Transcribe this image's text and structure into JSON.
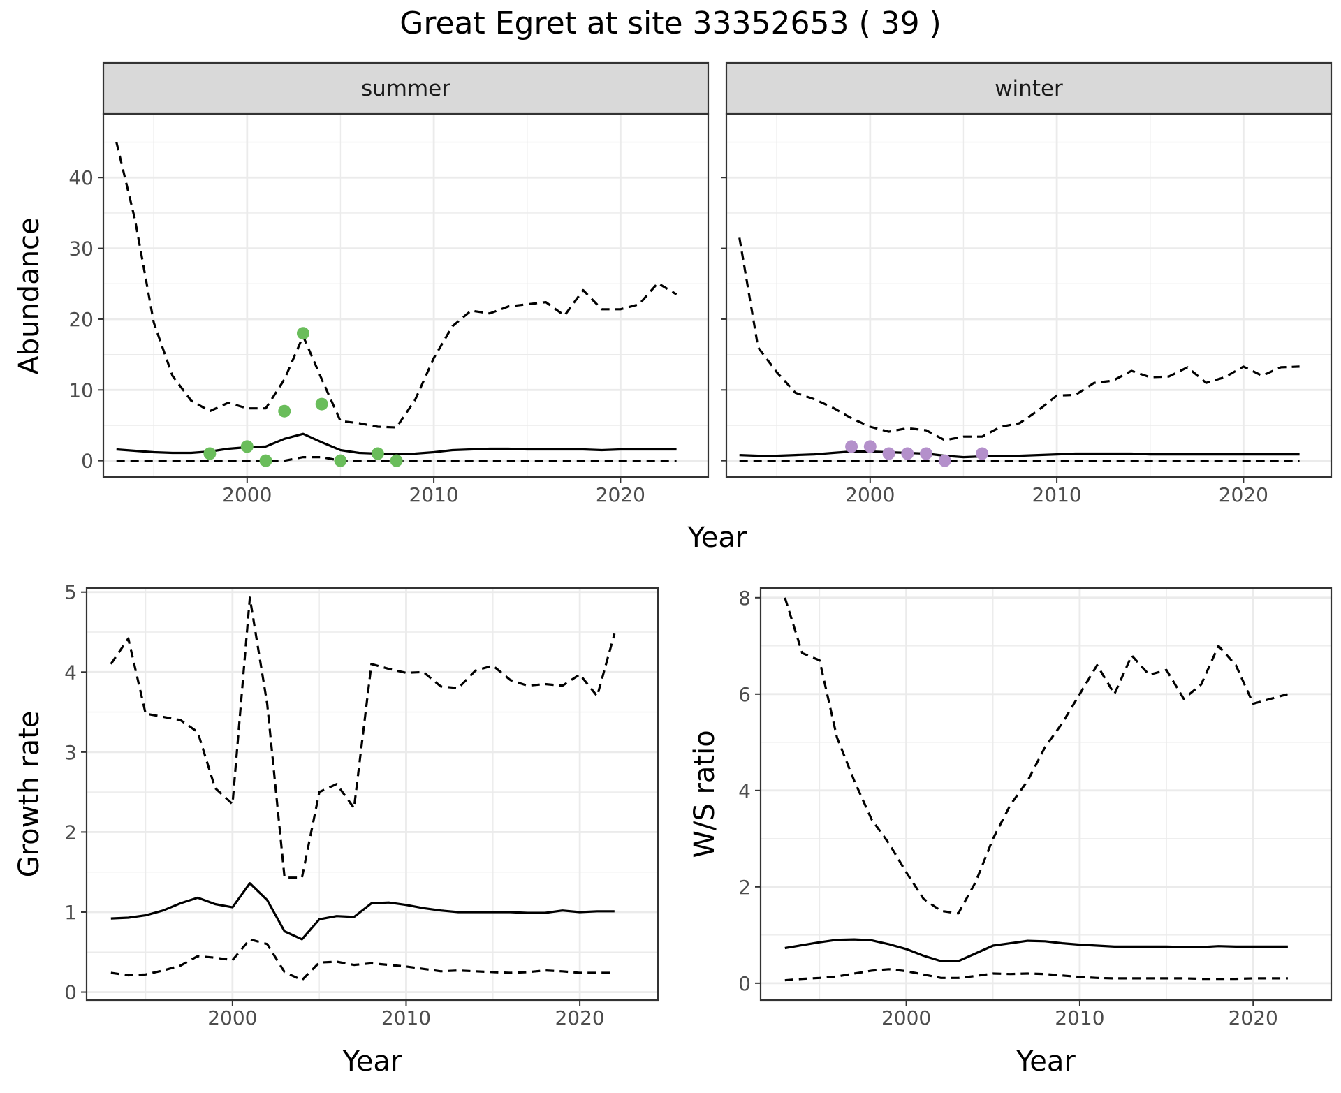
{
  "title": "Great Egret at site 33352653 ( 39 )",
  "colors": {
    "summer_points": "#6ABD5B",
    "winter_points": "#B490CB",
    "strip_fill": "#D9D9D9"
  },
  "chart_data": [
    {
      "type": "line",
      "panel": "abundance",
      "facets": [
        "summer",
        "winter"
      ],
      "xlabel": "Year",
      "ylabel": "Abundance",
      "xlim": [
        1992.3,
        2024.7
      ],
      "ylim": [
        -2.3,
        49
      ],
      "xticks": [
        2000,
        2010,
        2020
      ],
      "yticks": [
        0,
        10,
        20,
        30,
        40
      ],
      "grid": true,
      "summer": {
        "x": [
          1993,
          1994,
          1995,
          1996,
          1997,
          1998,
          1999,
          2000,
          2001,
          2002,
          2003,
          2004,
          2005,
          2006,
          2007,
          2008,
          2009,
          2010,
          2011,
          2012,
          2013,
          2014,
          2015,
          2016,
          2017,
          2018,
          2019,
          2020,
          2021,
          2022,
          2023
        ],
        "estimate": [
          1.6,
          1.4,
          1.2,
          1.1,
          1.1,
          1.3,
          1.7,
          1.9,
          2.0,
          3.1,
          3.8,
          2.6,
          1.5,
          1.1,
          1.0,
          0.9,
          1.0,
          1.2,
          1.5,
          1.6,
          1.7,
          1.7,
          1.6,
          1.6,
          1.6,
          1.6,
          1.5,
          1.6,
          1.6,
          1.6,
          1.6
        ],
        "upper": [
          45,
          34,
          19.5,
          12,
          8.5,
          7,
          8.2,
          7.4,
          7.4,
          11.5,
          17.6,
          11.5,
          5.6,
          5.3,
          4.8,
          4.7,
          8.6,
          14.5,
          19,
          21.2,
          20.8,
          21.8,
          22.1,
          22.4,
          20.5,
          24.1,
          21.4,
          21.4,
          22.1,
          25.1,
          23.5
        ],
        "lower": [
          0,
          0,
          0,
          0,
          0,
          0,
          0,
          0,
          0,
          0,
          0.5,
          0.5,
          0,
          0,
          0,
          0,
          0,
          0,
          0,
          0,
          0,
          0,
          0,
          0,
          0,
          0,
          0,
          0,
          0,
          0,
          0
        ],
        "observed": [
          {
            "x": 1998,
            "y": 1
          },
          {
            "x": 2000,
            "y": 2
          },
          {
            "x": 2001,
            "y": 0
          },
          {
            "x": 2002,
            "y": 7
          },
          {
            "x": 2003,
            "y": 18
          },
          {
            "x": 2004,
            "y": 8
          },
          {
            "x": 2005,
            "y": 0
          },
          {
            "x": 2007,
            "y": 1
          },
          {
            "x": 2008,
            "y": 0
          }
        ]
      },
      "winter": {
        "x": [
          1993,
          1994,
          1995,
          1996,
          1997,
          1998,
          1999,
          2000,
          2001,
          2002,
          2003,
          2004,
          2005,
          2006,
          2007,
          2008,
          2009,
          2010,
          2011,
          2012,
          2013,
          2014,
          2015,
          2016,
          2017,
          2018,
          2019,
          2020,
          2021,
          2022,
          2023
        ],
        "estimate": [
          0.8,
          0.7,
          0.7,
          0.8,
          0.9,
          1.1,
          1.3,
          1.3,
          1.2,
          1.1,
          1.0,
          0.7,
          0.5,
          0.6,
          0.7,
          0.7,
          0.8,
          0.9,
          1.0,
          1.0,
          1.0,
          1.0,
          0.9,
          0.9,
          0.9,
          0.9,
          0.9,
          0.9,
          0.9,
          0.9,
          0.9
        ],
        "upper": [
          31.5,
          16,
          12.5,
          9.6,
          8.7,
          7.5,
          6,
          4.8,
          4.1,
          4.6,
          4.3,
          2.9,
          3.4,
          3.4,
          4.8,
          5.3,
          7.1,
          9.2,
          9.3,
          11,
          11.3,
          12.7,
          11.8,
          11.9,
          13.2,
          11,
          11.8,
          13.3,
          12,
          13.2,
          13.3
        ],
        "lower": [
          0,
          0,
          0,
          0,
          0,
          0,
          0,
          0,
          0,
          0,
          0,
          0,
          0,
          0,
          0,
          0,
          0,
          0,
          0,
          0,
          0,
          0,
          0,
          0,
          0,
          0,
          0,
          0,
          0,
          0,
          0
        ],
        "observed": [
          {
            "x": 1999,
            "y": 2
          },
          {
            "x": 2000,
            "y": 2
          },
          {
            "x": 2001,
            "y": 1
          },
          {
            "x": 2002,
            "y": 1
          },
          {
            "x": 2003,
            "y": 1
          },
          {
            "x": 2004,
            "y": 0
          },
          {
            "x": 2006,
            "y": 1
          }
        ]
      }
    },
    {
      "type": "line",
      "panel": "growth",
      "xlabel": "Year",
      "ylabel": "Growth rate",
      "xlim": [
        1991.6,
        2024.5
      ],
      "ylim": [
        -0.1,
        5.05
      ],
      "xticks": [
        2000,
        2010,
        2020
      ],
      "yticks": [
        0,
        1,
        2,
        3,
        4,
        5
      ],
      "grid": true,
      "x": [
        1993,
        1994,
        1995,
        1996,
        1997,
        1998,
        1999,
        2000,
        2001,
        2002,
        2003,
        2004,
        2005,
        2006,
        2007,
        2008,
        2009,
        2010,
        2011,
        2012,
        2013,
        2014,
        2015,
        2016,
        2017,
        2018,
        2019,
        2020,
        2021,
        2022
      ],
      "estimate": [
        0.92,
        0.93,
        0.96,
        1.02,
        1.11,
        1.18,
        1.1,
        1.06,
        1.36,
        1.15,
        0.76,
        0.66,
        0.91,
        0.95,
        0.94,
        1.11,
        1.12,
        1.09,
        1.05,
        1.02,
        1.0,
        1.0,
        1.0,
        1.0,
        0.99,
        0.99,
        1.02,
        1.0,
        1.01,
        1.01
      ],
      "upper": [
        4.1,
        4.42,
        3.48,
        3.44,
        3.4,
        3.25,
        2.55,
        2.35,
        4.93,
        3.6,
        1.43,
        1.43,
        2.5,
        2.6,
        2.3,
        4.1,
        4.04,
        3.99,
        4.0,
        3.82,
        3.8,
        4.02,
        4.08,
        3.9,
        3.83,
        3.85,
        3.83,
        3.97,
        3.7,
        4.48
      ],
      "lower": [
        0.24,
        0.21,
        0.22,
        0.27,
        0.33,
        0.45,
        0.43,
        0.4,
        0.66,
        0.6,
        0.25,
        0.15,
        0.37,
        0.38,
        0.34,
        0.36,
        0.34,
        0.32,
        0.29,
        0.26,
        0.27,
        0.26,
        0.25,
        0.24,
        0.25,
        0.27,
        0.26,
        0.24,
        0.24,
        0.24
      ]
    },
    {
      "type": "line",
      "panel": "ratio",
      "xlabel": "Year",
      "ylabel": "W/S ratio",
      "xlim": [
        1991.6,
        2024.5
      ],
      "ylim": [
        -0.35,
        8.2
      ],
      "xticks": [
        2000,
        2010,
        2020
      ],
      "yticks": [
        0,
        2,
        4,
        6,
        8
      ],
      "grid": true,
      "x": [
        1993,
        1994,
        1995,
        1996,
        1997,
        1998,
        1999,
        2000,
        2001,
        2002,
        2003,
        2004,
        2005,
        2006,
        2007,
        2008,
        2009,
        2010,
        2011,
        2012,
        2013,
        2014,
        2015,
        2016,
        2017,
        2018,
        2019,
        2020,
        2021,
        2022
      ],
      "estimate": [
        0.73,
        0.79,
        0.85,
        0.9,
        0.91,
        0.89,
        0.81,
        0.71,
        0.57,
        0.46,
        0.46,
        0.62,
        0.78,
        0.83,
        0.88,
        0.87,
        0.83,
        0.8,
        0.78,
        0.76,
        0.76,
        0.76,
        0.76,
        0.75,
        0.75,
        0.77,
        0.76,
        0.76,
        0.76,
        0.76
      ],
      "upper": [
        8.0,
        6.85,
        6.7,
        5.1,
        4.2,
        3.4,
        2.9,
        2.3,
        1.75,
        1.5,
        1.45,
        2.1,
        3.0,
        3.7,
        4.2,
        4.9,
        5.4,
        6.0,
        6.6,
        6.0,
        6.8,
        6.4,
        6.5,
        5.9,
        6.2,
        7.0,
        6.6,
        5.8,
        5.9,
        6.0
      ],
      "lower": [
        0.06,
        0.09,
        0.11,
        0.14,
        0.2,
        0.26,
        0.29,
        0.25,
        0.18,
        0.11,
        0.11,
        0.15,
        0.2,
        0.19,
        0.2,
        0.19,
        0.16,
        0.13,
        0.11,
        0.1,
        0.1,
        0.1,
        0.1,
        0.1,
        0.09,
        0.09,
        0.09,
        0.1,
        0.1,
        0.1
      ]
    }
  ]
}
